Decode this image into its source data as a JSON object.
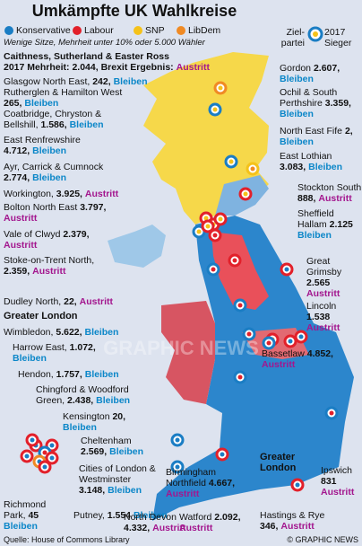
{
  "header": {
    "title": "Umkämpfte UK Wahlkreise",
    "subtitle": "Wenige Sitze, Mehrheit unter 10% oder 5.000 Wähler"
  },
  "legend": {
    "parties": [
      {
        "name": "Konservative",
        "color": "#1a7dc4"
      },
      {
        "name": "Labour",
        "color": "#e2202a"
      },
      {
        "name": "SNP",
        "color": "#f5c21a"
      },
      {
        "name": "LibDem",
        "color": "#f08a24"
      }
    ],
    "target": "Ziel-partei",
    "winner": "2017 Sieger"
  },
  "intro": {
    "name": "Caithness, Sutherland & Easter Ross",
    "majority_label": "2017 Mehrheit:",
    "majority": "2.044,",
    "result_label": "Brexit Ergebnis:",
    "result": "Austritt"
  },
  "constituencies": [
    {
      "name": "Glasgow North East,",
      "majority": "242,",
      "result": "Bleiben"
    },
    {
      "name": "Rutherglen & Hamilton West",
      "majority": "265,",
      "result": "Bleiben"
    },
    {
      "name": "Coatbridge, Chryston & Bellshill,",
      "majority": "1.586,",
      "result": "Bleiben"
    },
    {
      "name": "East Renfrewshire",
      "majority": "4.712,",
      "result": "Bleiben"
    },
    {
      "name": "Ayr, Carrick & Cumnock",
      "majority": "2.774,",
      "result": "Bleiben"
    },
    {
      "name": "Workington,",
      "majority": "3.925,",
      "result": "Austritt"
    },
    {
      "name": "Bolton North East",
      "majority": "3.797,",
      "result": "Austritt"
    },
    {
      "name": "Vale of Clwyd",
      "majority": "2.379,",
      "result": "Austritt"
    },
    {
      "name": "Stoke-on-Trent North,",
      "majority": "2.359,",
      "result": "Austritt"
    },
    {
      "name": "Dudley North,",
      "majority": "22,",
      "result": "Austritt"
    },
    {
      "name": "Wimbledon,",
      "majority": "5.622,",
      "result": "Bleiben"
    },
    {
      "name": "Harrow East,",
      "majority": "1.072,",
      "result": "Bleiben"
    },
    {
      "name": "Hendon,",
      "majority": "1.757,",
      "result": "Bleiben"
    },
    {
      "name": "Chingford & Woodford Green,",
      "majority": "2.438,",
      "result": "Bleiben"
    },
    {
      "name": "Kensington",
      "majority": "20,",
      "result": "Bleiben"
    },
    {
      "name": "Cheltenham",
      "majority": "2.569,",
      "result": "Bleiben"
    },
    {
      "name": "Cities of London & Westminster",
      "majority": "3.148,",
      "result": "Bleiben"
    },
    {
      "name": "Richmond Park,",
      "majority": "45",
      "result": "Bleiben"
    },
    {
      "name": "Putney,",
      "majority": "1.554",
      "result": "Bleiben"
    },
    {
      "name": "North Devon",
      "majority": "4.332,",
      "result": "Austritt"
    },
    {
      "name": "Watford",
      "majority": "2.092,",
      "result": "Austritt"
    },
    {
      "name": "Birmingham Northfield",
      "majority": "4.667,",
      "result": "Austritt"
    },
    {
      "name": "Gordon",
      "majority": "2.607,",
      "result": "Bleiben"
    },
    {
      "name": "Ochil & South Perthshire",
      "majority": "3.359,",
      "result": "Bleiben"
    },
    {
      "name": "North East Fife",
      "majority": "2,",
      "result": "Bleiben"
    },
    {
      "name": "East Lothian",
      "majority": "3.083,",
      "result": "Bleiben"
    },
    {
      "name": "Stockton South",
      "majority": "888,",
      "result": "Austritt"
    },
    {
      "name": "Sheffield Hallam",
      "majority": "2.125",
      "result": "Bleiben"
    },
    {
      "name": "Great Grimsby",
      "majority": "2.565",
      "result": "Austritt"
    },
    {
      "name": "Lincoln",
      "majority": "1.538",
      "result": "Austritt"
    },
    {
      "name": "Bassetlaw",
      "majority": "4.852,",
      "result": "Austritt"
    },
    {
      "name": "Ipswich",
      "majority": "831",
      "result": "Austritt"
    },
    {
      "name": "Hastings & Rye",
      "majority": "346,",
      "result": "Austritt"
    }
  ],
  "london_heading": "Greater London",
  "london_map_label": "Greater London",
  "watermark": "GRAPHIC NEWS",
  "footer": {
    "source": "Quelle: House of Commons Library",
    "credit": "© GRAPHIC NEWS"
  }
}
